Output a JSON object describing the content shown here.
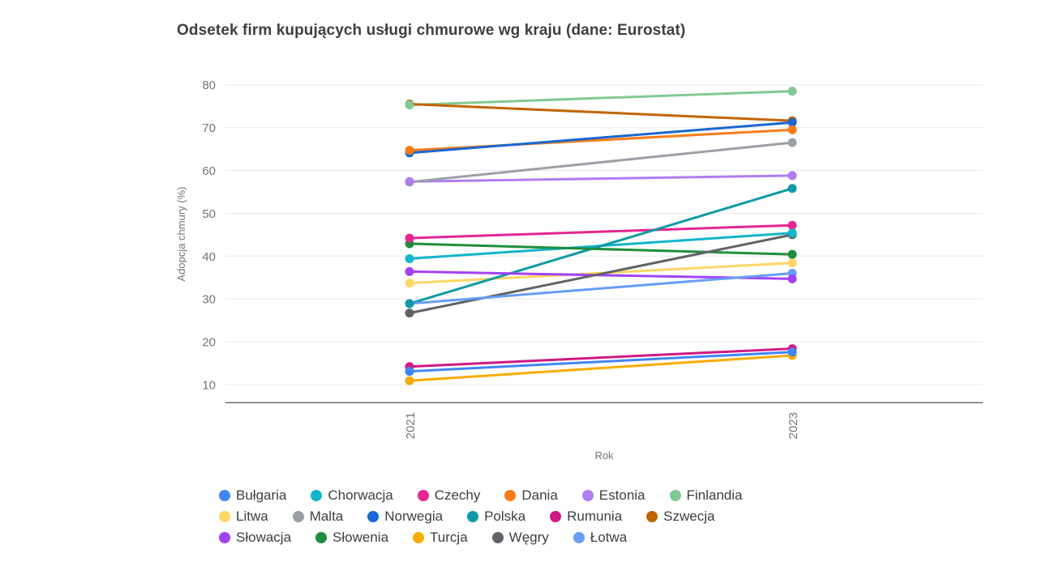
{
  "title": "Odsetek firm kupujących usługi chmurowe wg kraju (dane: Eurostat)",
  "chart_data": {
    "type": "line",
    "title": "Odsetek firm kupujących usługi chmurowe wg kraju (dane: Eurostat)",
    "xlabel": "Rok",
    "ylabel": "Adopcja chmury (%)",
    "categories": [
      "2021",
      "2023"
    ],
    "yticks": [
      10,
      20,
      30,
      40,
      50,
      60,
      70,
      80
    ],
    "ylim": [
      5.8,
      85
    ],
    "grid": true,
    "legend_position": "bottom",
    "colors": {
      "axis_text": "#757575",
      "gridline": "#e8e8e8",
      "axis_line": "#757575"
    },
    "series": [
      {
        "name": "Bułgaria",
        "color": "#4285F4",
        "values": [
          13.1,
          17.6
        ]
      },
      {
        "name": "Chorwacja",
        "color": "#12B5CB",
        "values": [
          39.4,
          45.4
        ]
      },
      {
        "name": "Czechy",
        "color": "#E52592",
        "values": [
          44.2,
          47.2
        ]
      },
      {
        "name": "Dania",
        "color": "#FA7B17",
        "values": [
          64.7,
          69.5
        ]
      },
      {
        "name": "Estonia",
        "color": "#AE7DF2",
        "values": [
          57.4,
          58.8
        ]
      },
      {
        "name": "Finlandia",
        "color": "#81C995",
        "values": [
          75.3,
          78.5
        ]
      },
      {
        "name": "Litwa",
        "color": "#FDD663",
        "values": [
          33.7,
          38.4
        ]
      },
      {
        "name": "Malta",
        "color": "#9AA0A6",
        "values": [
          57.3,
          66.5
        ]
      },
      {
        "name": "Norwegia",
        "color": "#1967D2",
        "values": [
          64.1,
          71.2
        ]
      },
      {
        "name": "Polska",
        "color": "#0E9AA7",
        "values": [
          28.9,
          55.8
        ]
      },
      {
        "name": "Rumunia",
        "color": "#D01884",
        "values": [
          14.2,
          18.4
        ]
      },
      {
        "name": "Szwecja",
        "color": "#C26401",
        "values": [
          75.5,
          71.6
        ]
      },
      {
        "name": "Słowacja",
        "color": "#A142F4",
        "values": [
          36.4,
          34.7
        ]
      },
      {
        "name": "Słowenia",
        "color": "#1E8E3E",
        "values": [
          42.9,
          40.4
        ]
      },
      {
        "name": "Turcja",
        "color": "#F9AB00",
        "values": [
          10.9,
          16.8
        ]
      },
      {
        "name": "Węgry",
        "color": "#5F6368",
        "values": [
          26.7,
          45.0
        ]
      },
      {
        "name": "Łotwa",
        "color": "#669DF6",
        "values": [
          28.9,
          36.0
        ]
      }
    ]
  }
}
